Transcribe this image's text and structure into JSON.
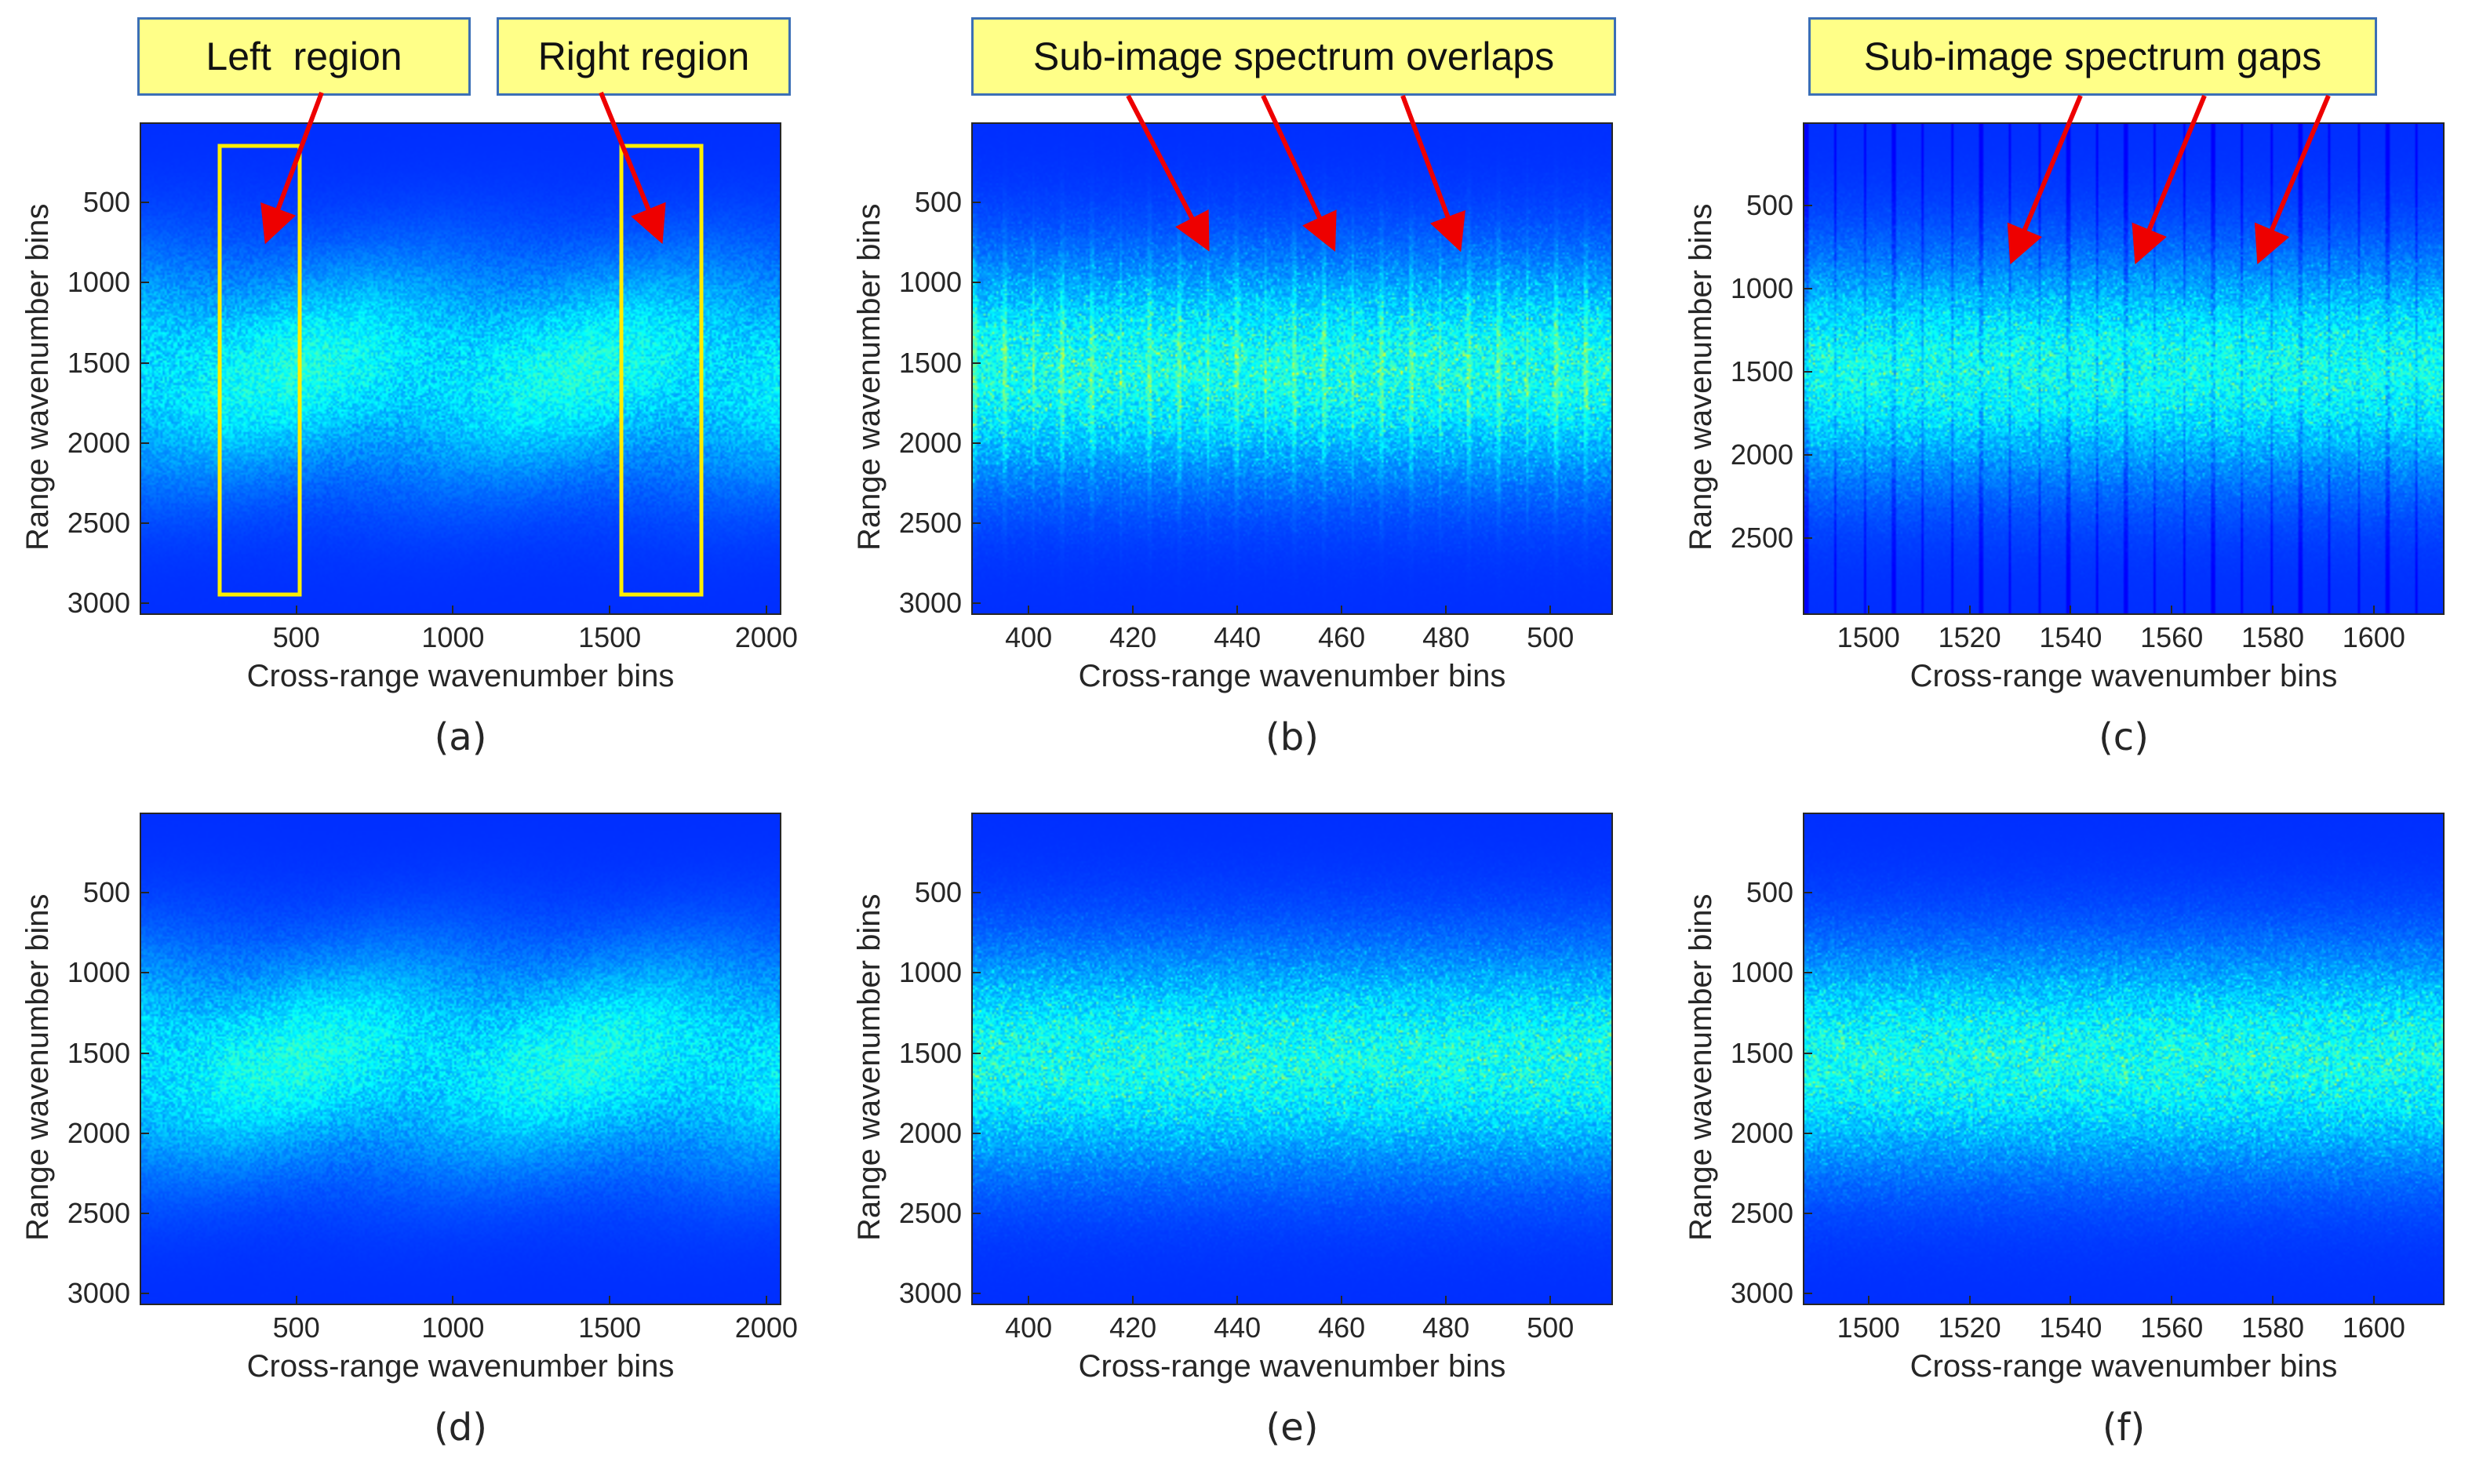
{
  "colors": {
    "background": "#3a3bc6",
    "arrow": "#ee0000",
    "region_box": "#ffee00",
    "callout_fill": "#ffff88",
    "callout_border": "#3b6fb6"
  },
  "callouts": {
    "left_region": "Left  region",
    "right_region": "Right region",
    "overlaps": "Sub-image spectrum overlaps",
    "gaps": "Sub-image spectrum gaps"
  },
  "chart_data": [
    {
      "id": "a",
      "type": "heatmap",
      "caption": "(a)",
      "xlabel": "Cross-range wavenumber bins",
      "ylabel": "Range wavenumber bins",
      "xlim": [
        0,
        2048
      ],
      "ylim": [
        0,
        3072
      ],
      "xticks": [
        "500",
        "1000",
        "1500",
        "2000"
      ],
      "xtick_values": [
        500,
        1000,
        1500,
        2000
      ],
      "yticks": [
        "500",
        "1000",
        "1500",
        "2000",
        "2500",
        "3000"
      ],
      "ytick_values": [
        500,
        1000,
        1500,
        2000,
        2500,
        3000
      ],
      "regions": [
        {
          "name": "Left region",
          "x_range": [
            250,
            505
          ],
          "y_range": [
            140,
            2900
          ]
        },
        {
          "name": "Right region",
          "x_range": [
            1525,
            1780
          ],
          "y_range": [
            140,
            2900
          ]
        }
      ],
      "pattern": "broadband"
    },
    {
      "id": "b",
      "type": "heatmap",
      "caption": "(b)",
      "xlabel": "Cross-range wavenumber bins",
      "ylabel": "Range wavenumber bins",
      "xlim": [
        389,
        512
      ],
      "ylim": [
        0,
        3072
      ],
      "xticks": [
        "400",
        "420",
        "440",
        "460",
        "480",
        "500"
      ],
      "xtick_values": [
        400,
        420,
        440,
        460,
        480,
        500
      ],
      "yticks": [
        "500",
        "1000",
        "1500",
        "2000",
        "2500",
        "3000"
      ],
      "ytick_values": [
        500,
        1000,
        1500,
        2000,
        2500,
        3000
      ],
      "pattern": "overlaps"
    },
    {
      "id": "c",
      "type": "heatmap",
      "caption": "(c)",
      "xlabel": "Cross-range wavenumber bins",
      "ylabel": "Range wavenumber bins",
      "xlim": [
        1487,
        1614
      ],
      "ylim": [
        0,
        2960
      ],
      "xticks": [
        "1500",
        "1520",
        "1540",
        "1560",
        "1580",
        "1600"
      ],
      "xtick_values": [
        1500,
        1520,
        1540,
        1560,
        1580,
        1600
      ],
      "yticks": [
        "500",
        "1000",
        "1500",
        "2000",
        "2500"
      ],
      "ytick_values": [
        500,
        1000,
        1500,
        2000,
        2500
      ],
      "pattern": "gaps"
    },
    {
      "id": "d",
      "type": "heatmap",
      "caption": "(d)",
      "xlabel": "Cross-range wavenumber bins",
      "ylabel": "Range wavenumber bins",
      "xlim": [
        0,
        2048
      ],
      "ylim": [
        0,
        3072
      ],
      "xticks": [
        "500",
        "1000",
        "1500",
        "2000"
      ],
      "xtick_values": [
        500,
        1000,
        1500,
        2000
      ],
      "yticks": [
        "500",
        "1000",
        "1500",
        "2000",
        "2500",
        "3000"
      ],
      "ytick_values": [
        500,
        1000,
        1500,
        2000,
        2500,
        3000
      ],
      "pattern": "broadband"
    },
    {
      "id": "e",
      "type": "heatmap",
      "caption": "(e)",
      "xlabel": "Cross-range wavenumber bins",
      "ylabel": "Range wavenumber bins",
      "xlim": [
        389,
        512
      ],
      "ylim": [
        0,
        3072
      ],
      "xticks": [
        "400",
        "420",
        "440",
        "460",
        "480",
        "500"
      ],
      "xtick_values": [
        400,
        420,
        440,
        460,
        480,
        500
      ],
      "yticks": [
        "500",
        "1000",
        "1500",
        "2000",
        "2500",
        "3000"
      ],
      "ytick_values": [
        500,
        1000,
        1500,
        2000,
        2500,
        3000
      ],
      "pattern": "smooth"
    },
    {
      "id": "f",
      "type": "heatmap",
      "caption": "(f)",
      "xlabel": "Cross-range wavenumber bins",
      "ylabel": "Range wavenumber bins",
      "xlim": [
        1487,
        1614
      ],
      "ylim": [
        0,
        3072
      ],
      "xticks": [
        "1500",
        "1520",
        "1540",
        "1560",
        "1580",
        "1600"
      ],
      "xtick_values": [
        1500,
        1520,
        1540,
        1560,
        1580,
        1600
      ],
      "yticks": [
        "500",
        "1000",
        "1500",
        "2000",
        "2500",
        "3000"
      ],
      "ytick_values": [
        500,
        1000,
        1500,
        2000,
        2500,
        3000
      ],
      "pattern": "smooth"
    }
  ]
}
